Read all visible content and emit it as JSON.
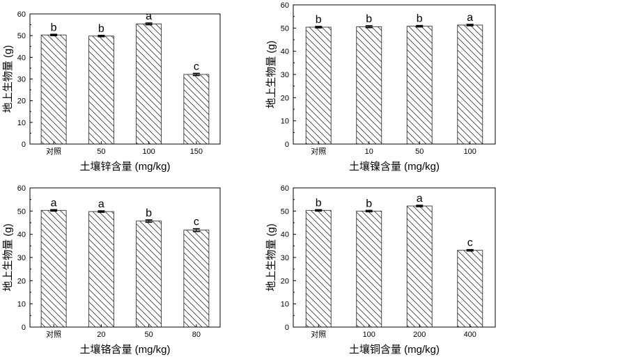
{
  "chart_data": [
    {
      "type": "bar",
      "categories": [
        "对照",
        "50",
        "100",
        "150"
      ],
      "values": [
        50.3,
        49.8,
        55.4,
        32.1
      ],
      "errors": [
        0.3,
        0.3,
        0.4,
        0.5
      ],
      "significance": [
        "b",
        "b",
        "a",
        "c"
      ],
      "xlabel": "土壤锌含量 (mg/kg)",
      "ylabel": "地上生物量 (g)",
      "ylim": [
        0,
        60
      ],
      "yticks": [
        "0",
        "10",
        "20",
        "30",
        "40",
        "50",
        "60"
      ],
      "pattern": "diagonal-hatch",
      "grid": false
    },
    {
      "type": "bar",
      "categories": [
        "对照",
        "10",
        "50",
        "100"
      ],
      "values": [
        50.4,
        50.6,
        50.8,
        51.3
      ],
      "errors": [
        0.3,
        0.4,
        0.3,
        0.3
      ],
      "significance": [
        "b",
        "b",
        "b",
        "a"
      ],
      "xlabel": "土壤镍含量 (mg/kg)",
      "ylabel": "地上生物量 (g)",
      "ylim": [
        0,
        60
      ],
      "yticks": [
        "0",
        "10",
        "20",
        "30",
        "40",
        "50",
        "60"
      ],
      "pattern": "diagonal-hatch",
      "grid": false
    },
    {
      "type": "bar",
      "categories": [
        "对照",
        "20",
        "50",
        "80"
      ],
      "values": [
        50.3,
        49.8,
        45.7,
        41.8
      ],
      "errors": [
        0.3,
        0.3,
        0.5,
        0.6
      ],
      "significance": [
        "a",
        "a",
        "b",
        "c"
      ],
      "xlabel": "土壤铬含量 (mg/kg)",
      "ylabel": "地上生物量 (g)",
      "ylim": [
        0,
        60
      ],
      "yticks": [
        "0",
        "10",
        "20",
        "30",
        "40",
        "50",
        "60"
      ],
      "pattern": "diagonal-hatch",
      "grid": false
    },
    {
      "type": "bar",
      "categories": [
        "对照",
        "100",
        "200",
        "400"
      ],
      "values": [
        50.3,
        50.0,
        52.2,
        33.1
      ],
      "errors": [
        0.3,
        0.3,
        0.3,
        0.3
      ],
      "significance": [
        "b",
        "b",
        "a",
        "c"
      ],
      "xlabel": "土壤铜含量 (mg/kg)",
      "ylabel": "地上生物量 (g)",
      "ylim": [
        0,
        60
      ],
      "yticks": [
        "0",
        "10",
        "20",
        "30",
        "40",
        "50",
        "60"
      ],
      "pattern": "diagonal-hatch",
      "grid": false
    }
  ]
}
